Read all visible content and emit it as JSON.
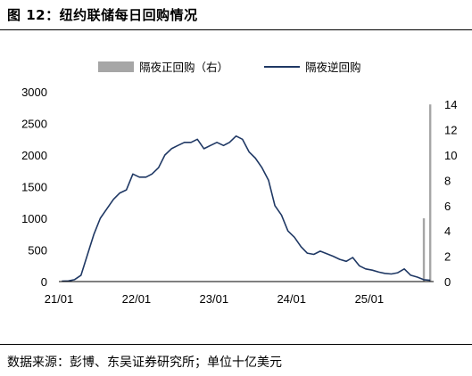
{
  "figure": {
    "title": "图 12：纽约联储每日回购情况",
    "source": "数据来源：彭博、东吴证券研究所；单位十亿美元"
  },
  "colors": {
    "line": "#1f3864",
    "bar": "#a6a6a6"
  },
  "chart_data": {
    "type": "line",
    "title": "",
    "legend": {
      "placement": "top",
      "entries": [
        "隔夜正回购（右）",
        "隔夜逆回购"
      ]
    },
    "x_tick_labels": [
      "21/01",
      "22/01",
      "23/01",
      "24/01",
      "25/01"
    ],
    "left_axis": {
      "ylim": [
        0,
        3000
      ],
      "ticks": [
        0,
        500,
        1000,
        1500,
        2000,
        2500,
        3000
      ]
    },
    "right_axis": {
      "ylim": [
        0,
        15
      ],
      "ticks": [
        0,
        2,
        4,
        6,
        8,
        10,
        12,
        14
      ]
    },
    "series": [
      {
        "name": "隔夜逆回购",
        "axis": "left",
        "x": [
          "2021-01",
          "2021-02",
          "2021-03",
          "2021-04",
          "2021-05",
          "2021-06",
          "2021-07",
          "2021-08",
          "2021-09",
          "2021-10",
          "2021-11",
          "2021-12",
          "2022-01",
          "2022-02",
          "2022-03",
          "2022-04",
          "2022-05",
          "2022-06",
          "2022-07",
          "2022-08",
          "2022-09",
          "2022-10",
          "2022-11",
          "2022-12",
          "2023-01",
          "2023-02",
          "2023-03",
          "2023-04",
          "2023-05",
          "2023-06",
          "2023-07",
          "2023-08",
          "2023-09",
          "2023-10",
          "2023-11",
          "2023-12",
          "2024-01",
          "2024-02",
          "2024-03",
          "2024-04",
          "2024-05",
          "2024-06",
          "2024-07",
          "2024-08",
          "2024-09",
          "2024-10",
          "2024-11",
          "2024-12",
          "2025-01",
          "2025-02",
          "2025-03",
          "2025-04",
          "2025-05",
          "2025-06",
          "2025-07",
          "2025-08",
          "2025-09",
          "2025-10"
        ],
        "values": [
          5,
          10,
          30,
          100,
          420,
          750,
          1000,
          1150,
          1300,
          1400,
          1450,
          1700,
          1650,
          1650,
          1700,
          1800,
          2000,
          2100,
          2150,
          2200,
          2200,
          2250,
          2100,
          2150,
          2200,
          2150,
          2200,
          2300,
          2250,
          2050,
          1950,
          1800,
          1600,
          1200,
          1050,
          800,
          700,
          550,
          450,
          430,
          480,
          440,
          400,
          350,
          320,
          380,
          250,
          200,
          180,
          150,
          130,
          120,
          140,
          200,
          100,
          70,
          30,
          20
        ]
      },
      {
        "name": "隔夜正回购（右）",
        "axis": "right",
        "type": "bar",
        "x": [
          "2025-09",
          "2025-10"
        ],
        "values": [
          5,
          14
        ]
      }
    ]
  }
}
